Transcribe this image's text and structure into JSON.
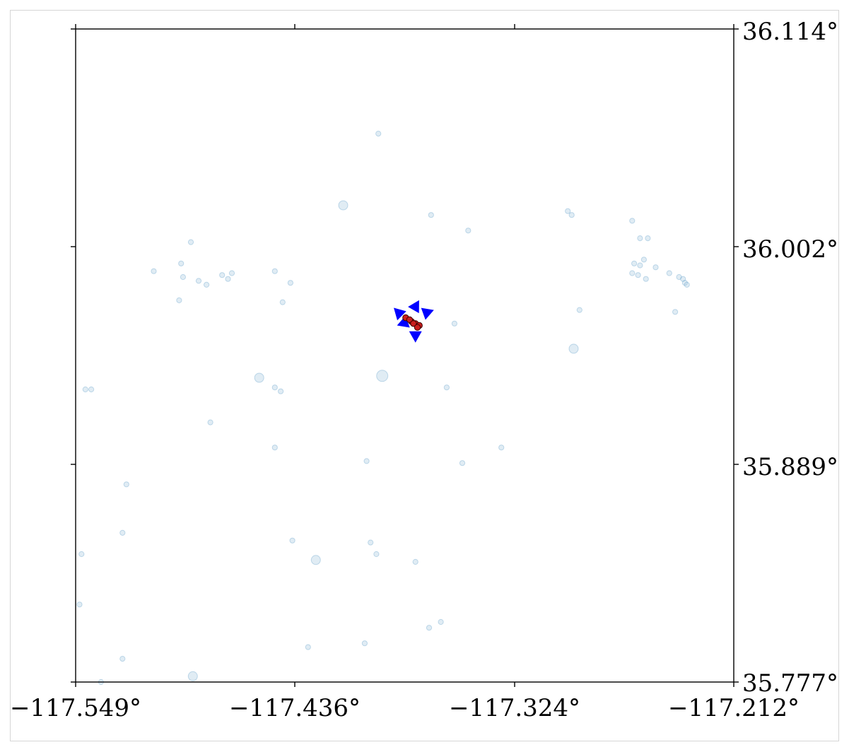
{
  "map": {
    "x_tick_labels": [
      "−117.549°",
      "−117.436°",
      "−117.324°",
      "−117.212°"
    ],
    "y_tick_labels": [
      "36.114°",
      "36.002°",
      "35.889°",
      "35.777°"
    ],
    "x_ticks": [
      -117.549,
      -117.436,
      -117.324,
      -117.212
    ],
    "y_ticks": [
      36.114,
      36.002,
      35.889,
      35.777
    ],
    "lon_range": [
      -117.549,
      -117.212
    ],
    "lat_range": [
      35.777,
      36.114
    ],
    "colors": {
      "background_events": "#a6c8e0",
      "background_edge": "#1f77b4",
      "cluster_events": "#c81e1e",
      "arrows": "#0000ff"
    }
  },
  "chart_data": {
    "type": "scatter",
    "title": "",
    "xlabel": "",
    "ylabel": "",
    "xlim": [
      -117.549,
      -117.212
    ],
    "ylim": [
      35.777,
      36.114
    ],
    "grid": false,
    "series": [
      {
        "role": "background events",
        "points": [
          [
            -117.394,
            36.06,
            1
          ],
          [
            -117.412,
            36.023,
            2
          ],
          [
            -117.367,
            36.018,
            1
          ],
          [
            -117.348,
            36.01,
            1
          ],
          [
            -117.297,
            36.02,
            1
          ],
          [
            -117.295,
            36.018,
            1
          ],
          [
            -117.264,
            36.015,
            1
          ],
          [
            -117.26,
            36.006,
            1
          ],
          [
            -117.256,
            36.006,
            1
          ],
          [
            -117.49,
            36.004,
            1
          ],
          [
            -117.495,
            35.993,
            1
          ],
          [
            -117.509,
            35.989,
            1
          ],
          [
            -117.494,
            35.986,
            1
          ],
          [
            -117.486,
            35.984,
            1
          ],
          [
            -117.482,
            35.982,
            1
          ],
          [
            -117.474,
            35.987,
            1
          ],
          [
            -117.469,
            35.988,
            1
          ],
          [
            -117.471,
            35.985,
            1
          ],
          [
            -117.447,
            35.989,
            1
          ],
          [
            -117.439,
            35.983,
            1
          ],
          [
            -117.443,
            35.973,
            1
          ],
          [
            -117.496,
            35.974,
            1
          ],
          [
            -117.291,
            35.969,
            1
          ],
          [
            -117.258,
            35.995,
            1
          ],
          [
            -117.263,
            35.993,
            1
          ],
          [
            -117.26,
            35.992,
            1
          ],
          [
            -117.264,
            35.988,
            1
          ],
          [
            -117.261,
            35.987,
            1
          ],
          [
            -117.257,
            35.985,
            1
          ],
          [
            -117.252,
            35.991,
            1
          ],
          [
            -117.245,
            35.988,
            1
          ],
          [
            -117.24,
            35.986,
            1
          ],
          [
            -117.238,
            35.985,
            1
          ],
          [
            -117.237,
            35.983,
            1
          ],
          [
            -117.236,
            35.982,
            1
          ],
          [
            -117.242,
            35.968,
            1
          ],
          [
            -117.355,
            35.962,
            1
          ],
          [
            -117.294,
            35.949,
            2
          ],
          [
            -117.359,
            35.929,
            1
          ],
          [
            -117.392,
            35.935,
            3
          ],
          [
            -117.544,
            35.928,
            1
          ],
          [
            -117.541,
            35.928,
            1
          ],
          [
            -117.455,
            35.934,
            2
          ],
          [
            -117.447,
            35.929,
            1
          ],
          [
            -117.444,
            35.927,
            1
          ],
          [
            -117.48,
            35.911,
            1
          ],
          [
            -117.447,
            35.898,
            1
          ],
          [
            -117.331,
            35.898,
            1
          ],
          [
            -117.4,
            35.891,
            1
          ],
          [
            -117.351,
            35.89,
            1
          ],
          [
            -117.523,
            35.879,
            1
          ],
          [
            -117.525,
            35.854,
            1
          ],
          [
            -117.546,
            35.843,
            1
          ],
          [
            -117.438,
            35.85,
            1
          ],
          [
            -117.398,
            35.849,
            1
          ],
          [
            -117.395,
            35.843,
            1
          ],
          [
            -117.426,
            35.84,
            2
          ],
          [
            -117.375,
            35.839,
            1
          ],
          [
            -117.547,
            35.817,
            1
          ],
          [
            -117.362,
            35.808,
            1
          ],
          [
            -117.368,
            35.805,
            1
          ],
          [
            -117.43,
            35.795,
            1
          ],
          [
            -117.401,
            35.797,
            1
          ],
          [
            -117.525,
            35.789,
            1
          ],
          [
            -117.489,
            35.78,
            2
          ],
          [
            -117.536,
            35.777,
            1
          ]
        ]
      },
      {
        "role": "cluster events",
        "points": [
          [
            -117.38,
            35.965
          ],
          [
            -117.377,
            35.963
          ],
          [
            -117.375,
            35.962
          ],
          [
            -117.373,
            35.961
          ],
          [
            -117.378,
            35.964
          ],
          [
            -117.376,
            35.962
          ],
          [
            -117.374,
            35.96
          ]
        ]
      },
      {
        "role": "arrows",
        "points": [
          [
            -117.382,
            35.966
          ],
          [
            -117.376,
            35.969
          ],
          [
            -117.371,
            35.967
          ],
          [
            -117.375,
            35.958
          ],
          [
            -117.379,
            35.963
          ]
        ]
      }
    ]
  }
}
